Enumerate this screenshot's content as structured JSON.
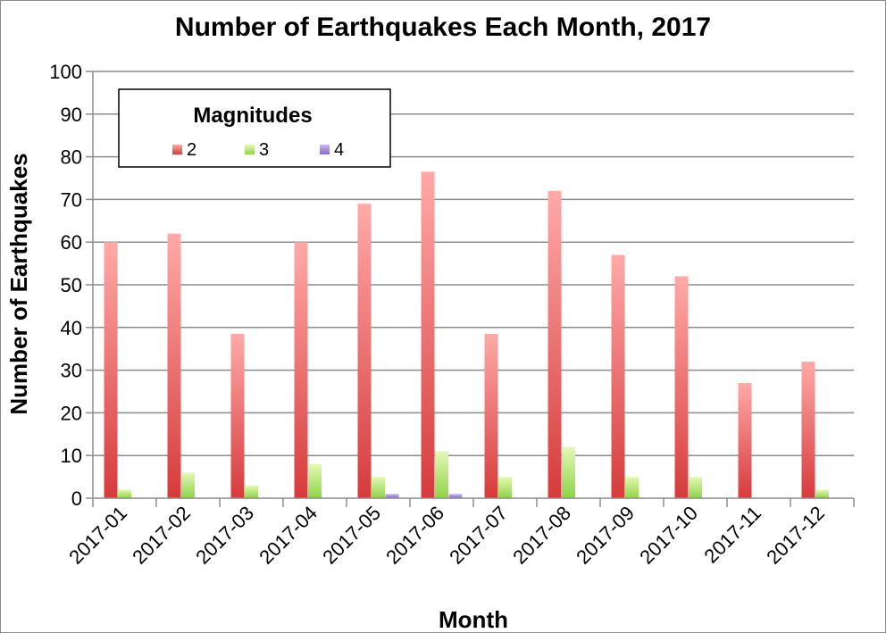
{
  "chart_data": {
    "type": "bar",
    "title": "Number of Earthquakes Each Month, 2017",
    "xlabel": "Month",
    "ylabel": "Number of Earthquakes",
    "ylim": [
      0,
      100
    ],
    "yticks": [
      0,
      10,
      20,
      30,
      40,
      50,
      60,
      70,
      80,
      90,
      100
    ],
    "grid": true,
    "legend": {
      "title": "Magnitudes",
      "placement": "top-left"
    },
    "categories": [
      "2017-01",
      "2017-02",
      "2017-03",
      "2017-04",
      "2017-05",
      "2017-06",
      "2017-07",
      "2017-08",
      "2017-09",
      "2017-10",
      "2017-11",
      "2017-12"
    ],
    "series": [
      {
        "name": "2",
        "color": "#e84d4d",
        "values": [
          60,
          62,
          38.5,
          60,
          69,
          76.5,
          38.5,
          72,
          57,
          52,
          27,
          32
        ]
      },
      {
        "name": "3",
        "color": "#9fe05a",
        "values": [
          2,
          6,
          3,
          8,
          5,
          11,
          5,
          12,
          5,
          5,
          0,
          2
        ]
      },
      {
        "name": "4",
        "color": "#9b7fd6",
        "values": [
          0,
          0,
          0,
          0,
          1,
          1,
          0,
          0,
          0,
          0,
          0,
          0
        ]
      }
    ]
  }
}
